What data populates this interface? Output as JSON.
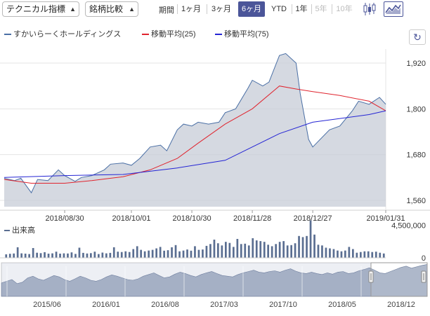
{
  "toolbar": {
    "technical_label": "テクニカル指標",
    "compare_label": "銘柄比較",
    "period_label": "期間",
    "periods": [
      "1ヶ月",
      "3ヶ月",
      "6ヶ月",
      "YTD",
      "1年",
      "5年",
      "10年"
    ],
    "active_period": "6ヶ月",
    "disabled_periods": [
      "5年",
      "10年"
    ],
    "chart_type_icons": [
      "candlestick-icon",
      "area-chart-icon"
    ],
    "active_chart_type": "area-chart-icon",
    "accent_color": "#4b5599"
  },
  "legend": {
    "price_label": "すかいらーくホールディングス",
    "ma25_label": "移動平均(25)",
    "ma75_label": "移動平均(75)"
  },
  "volume_label": "出来高",
  "colors": {
    "price_line": "#4a6fa5",
    "price_fill": "#c7ccd7",
    "ma25": "#e0242e",
    "ma75": "#2424d4",
    "volume": "#5a6e91",
    "navigator": "#8c9ab4"
  },
  "chart_data": [
    {
      "type": "area",
      "y_ticks": [
        "1,920",
        "1,800",
        "1,680",
        "1,560"
      ],
      "ylim": [
        1560,
        1920
      ],
      "x_ticks": [
        "2018/08/30",
        "2018/10/01",
        "2018/10/30",
        "2018/11/28",
        "2018/12/27",
        "2019/01/31"
      ],
      "series": [
        {
          "name": "すかいらーくホールディングス",
          "x": [
            "2018/08/01",
            "2018/08/06",
            "2018/08/09",
            "2018/08/14",
            "2018/08/17",
            "2018/08/22",
            "2018/08/27",
            "2018/08/30",
            "2018/09/04",
            "2018/09/07",
            "2018/09/12",
            "2018/09/18",
            "2018/09/21",
            "2018/09/27",
            "2018/10/01",
            "2018/10/05",
            "2018/10/10",
            "2018/10/15",
            "2018/10/18",
            "2018/10/23",
            "2018/10/26",
            "2018/10/30",
            "2018/11/02",
            "2018/11/07",
            "2018/11/12",
            "2018/11/15",
            "2018/11/20",
            "2018/11/26",
            "2018/11/28",
            "2018/12/03",
            "2018/12/06",
            "2018/12/11",
            "2018/12/14",
            "2018/12/19",
            "2018/12/21",
            "2018/12/25",
            "2018/12/27",
            "2019/01/04",
            "2019/01/09",
            "2019/01/15",
            "2019/01/18",
            "2019/01/23",
            "2019/01/28",
            "2019/01/31"
          ],
          "values": [
            1618,
            1612,
            1618,
            1580,
            1615,
            1612,
            1640,
            1625,
            1610,
            1620,
            1625,
            1640,
            1655,
            1658,
            1652,
            1670,
            1700,
            1705,
            1690,
            1745,
            1760,
            1755,
            1765,
            1760,
            1765,
            1790,
            1800,
            1855,
            1875,
            1860,
            1870,
            1940,
            1945,
            1920,
            1840,
            1720,
            1700,
            1745,
            1755,
            1795,
            1820,
            1812,
            1830,
            1812
          ]
        },
        {
          "name": "移動平均(25)",
          "x": [
            "2018/08/01",
            "2018/08/14",
            "2018/08/30",
            "2018/09/12",
            "2018/09/27",
            "2018/10/10",
            "2018/10/23",
            "2018/11/02",
            "2018/11/15",
            "2018/11/28",
            "2018/12/11",
            "2018/12/19",
            "2018/12/27",
            "2019/01/09",
            "2019/01/23",
            "2019/01/31"
          ],
          "values": [
            1615,
            1605,
            1605,
            1612,
            1622,
            1640,
            1670,
            1710,
            1760,
            1800,
            1860,
            1852,
            1845,
            1835,
            1820,
            1795
          ]
        },
        {
          "name": "移動平均(75)",
          "x": [
            "2018/08/01",
            "2018/08/30",
            "2018/09/27",
            "2018/10/23",
            "2018/11/15",
            "2018/12/11",
            "2018/12/27",
            "2019/01/23",
            "2019/01/31"
          ],
          "values": [
            1620,
            1625,
            1628,
            1645,
            1665,
            1735,
            1765,
            1785,
            1795
          ]
        }
      ]
    },
    {
      "type": "bar",
      "name": "出来高",
      "y_ticks": [
        "4,500,000",
        "0"
      ],
      "ylim": [
        0,
        5200000
      ],
      "values": [
        480000,
        560000,
        600000,
        1450000,
        620000,
        580000,
        520000,
        1350000,
        700000,
        650000,
        780000,
        580000,
        620000,
        850000,
        580000,
        620000,
        600000,
        750000,
        540000,
        1400000,
        680000,
        600000,
        650000,
        850000,
        520000,
        720000,
        620000,
        680000,
        1450000,
        850000,
        800000,
        900000,
        800000,
        1200000,
        1600000,
        1100000,
        900000,
        1000000,
        1100000,
        1300000,
        1500000,
        980000,
        1050000,
        1450000,
        1750000,
        900000,
        1000000,
        1150000,
        980000,
        1600000,
        1100000,
        1150000,
        1650000,
        1900000,
        2500000,
        2000000,
        1700000,
        2200000,
        2050000,
        1500000,
        2600000,
        1900000,
        1950000,
        1700000,
        2700000,
        2400000,
        2300000,
        2200000,
        1800000,
        1600000,
        1900000,
        2200000,
        2300000,
        1700000,
        1750000,
        2000000,
        3000000,
        2850000,
        3000000,
        5150000,
        3200000,
        1800000,
        1700000,
        1400000,
        1300000,
        1200000,
        1000000,
        900000,
        1000000,
        1500000,
        1200000,
        700000,
        800000,
        900000,
        900000,
        800000,
        850000,
        700000,
        600000
      ]
    },
    {
      "type": "area",
      "name": "navigator",
      "x_ticks": [
        "2015/06",
        "2016/01",
        "2016/08",
        "2017/03",
        "2017/10",
        "2018/05",
        "2018/12"
      ],
      "values": [
        40,
        45,
        50,
        38,
        42,
        55,
        60,
        52,
        48,
        55,
        62,
        58,
        50,
        45,
        52,
        60,
        55,
        48,
        45,
        50,
        58,
        64,
        60,
        55,
        50,
        48,
        52,
        60,
        65,
        70,
        62,
        55,
        58,
        66,
        72,
        68,
        62,
        58,
        65,
        70,
        74,
        68,
        62,
        60,
        58,
        65,
        70,
        74,
        78,
        72,
        70,
        74,
        76,
        72,
        78,
        82,
        75,
        70,
        68,
        72,
        68,
        65,
        70,
        66,
        72,
        74,
        68,
        70,
        76,
        80,
        85,
        78,
        70,
        68,
        74,
        80,
        86,
        90,
        84,
        88,
        92,
        95
      ]
    }
  ]
}
